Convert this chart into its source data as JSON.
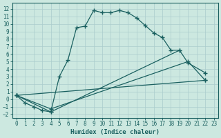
{
  "xlabel": "Humidex (Indice chaleur)",
  "ylabel": "",
  "xlim": [
    -0.5,
    23.5
  ],
  "ylim": [
    -2.5,
    12.8
  ],
  "xticks": [
    0,
    1,
    2,
    3,
    4,
    5,
    6,
    7,
    8,
    9,
    10,
    11,
    12,
    13,
    14,
    15,
    16,
    17,
    18,
    19,
    20,
    21,
    22,
    23
  ],
  "yticks": [
    -2,
    -1,
    0,
    1,
    2,
    3,
    4,
    5,
    6,
    7,
    8,
    9,
    10,
    11,
    12
  ],
  "bg_color": "#cce8e0",
  "grid_color": "#aacccc",
  "line_color": "#1a6060",
  "line1_x": [
    0,
    1,
    2,
    3,
    4,
    5,
    6,
    7,
    8,
    9,
    10,
    11,
    12,
    13,
    14,
    15,
    16,
    17,
    18,
    19
  ],
  "line1_y": [
    0.5,
    -0.5,
    -1.0,
    -1.5,
    -1.7,
    3.0,
    5.2,
    9.5,
    9.7,
    11.8,
    11.5,
    11.5,
    11.8,
    11.5,
    10.8,
    9.8,
    8.8,
    8.2,
    6.5,
    6.5
  ],
  "line2_x": [
    0,
    4,
    19,
    20,
    22
  ],
  "line2_y": [
    0.5,
    -1.7,
    6.5,
    4.8,
    3.5
  ],
  "line3_x": [
    0,
    4,
    20,
    22
  ],
  "line3_y": [
    0.5,
    -1.3,
    5.0,
    2.5
  ],
  "line4_x": [
    0,
    22
  ],
  "line4_y": [
    0.5,
    2.5
  ],
  "marker": "+",
  "markersize": 4
}
